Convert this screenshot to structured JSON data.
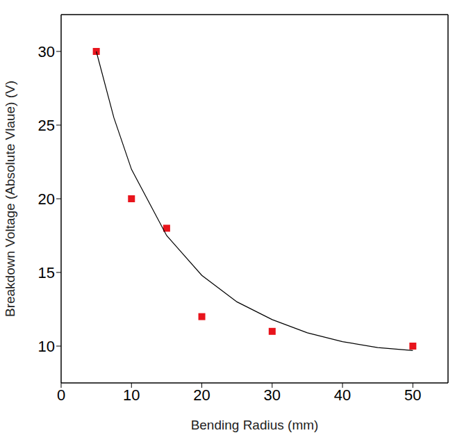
{
  "chart_data": {
    "type": "scatter",
    "x_label": "Bending Radius (mm)",
    "y_label": "Breakdown Voltage (Absolute Vlaue) (V)",
    "xlim": [
      0,
      55
    ],
    "xticks": [
      0,
      10,
      20,
      30,
      40,
      50
    ],
    "ylim": [
      7.5,
      32.5
    ],
    "yticks": [
      10,
      15,
      20,
      25,
      30
    ],
    "grid": false,
    "series": [
      {
        "type": "scatter",
        "color": "#e8141c",
        "marker": "square",
        "x": [
          5,
          10,
          15,
          20,
          30,
          50
        ],
        "values": [
          30,
          20,
          18,
          12,
          11,
          10
        ]
      },
      {
        "type": "line",
        "color": "#000000",
        "line_style": "solid",
        "x": [
          5,
          7.5,
          10,
          15,
          20,
          25,
          30,
          35,
          40,
          45,
          50
        ],
        "values": [
          30,
          25.5,
          22,
          17.5,
          14.8,
          13,
          11.8,
          10.9,
          10.3,
          9.9,
          9.7
        ]
      }
    ]
  }
}
